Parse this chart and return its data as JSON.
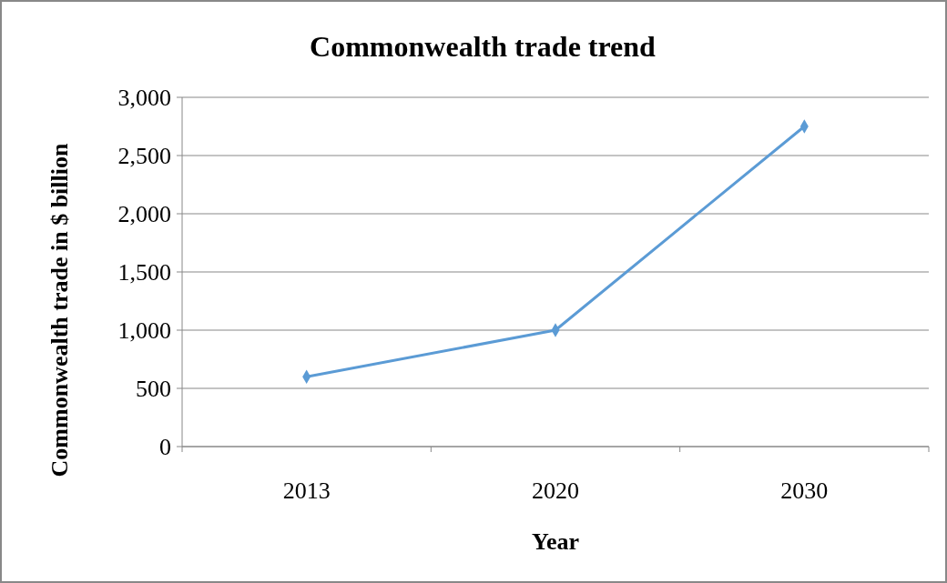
{
  "chart_data": {
    "type": "line",
    "title": "Commonwealth trade trend",
    "xlabel": "Year",
    "ylabel": "Commonwealth trade in $ billion",
    "categories": [
      "2013",
      "2020",
      "2030"
    ],
    "series": [
      {
        "color": "#5b9bd5",
        "values": [
          600,
          1000,
          2750
        ]
      }
    ],
    "ylim": [
      0,
      3000
    ],
    "yticks": [
      {
        "value": 0,
        "label": "0"
      },
      {
        "value": 500,
        "label": "500"
      },
      {
        "value": 1000,
        "label": "1,000"
      },
      {
        "value": 1500,
        "label": "1,500"
      },
      {
        "value": 2000,
        "label": "2,000"
      },
      {
        "value": 2500,
        "label": "2,500"
      },
      {
        "value": 3000,
        "label": "3,000"
      }
    ],
    "grid": "y",
    "marker": "diamond",
    "line_style": "solid"
  }
}
